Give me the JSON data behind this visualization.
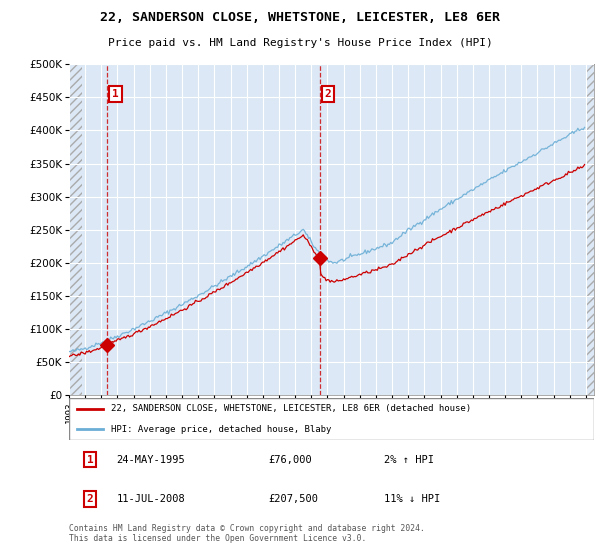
{
  "title_line1": "22, SANDERSON CLOSE, WHETSTONE, LEICESTER, LE8 6ER",
  "title_line2": "Price paid vs. HM Land Registry's House Price Index (HPI)",
  "legend_line1": "22, SANDERSON CLOSE, WHETSTONE, LEICESTER, LE8 6ER (detached house)",
  "legend_line2": "HPI: Average price, detached house, Blaby",
  "footnote": "Contains HM Land Registry data © Crown copyright and database right 2024.\nThis data is licensed under the Open Government Licence v3.0.",
  "annotation1_date": "24-MAY-1995",
  "annotation1_price": "£76,000",
  "annotation1_hpi": "2% ↑ HPI",
  "annotation2_date": "11-JUL-2008",
  "annotation2_price": "£207,500",
  "annotation2_hpi": "11% ↓ HPI",
  "sale1_x": 1995.38,
  "sale1_y": 76000,
  "sale2_x": 2008.53,
  "sale2_y": 207500,
  "hpi_color": "#6baed6",
  "sale_color": "#cc0000",
  "ylim_max": 500000,
  "xlim_min": 1993.0,
  "xlim_max": 2025.5,
  "yticks": [
    0,
    50000,
    100000,
    150000,
    200000,
    250000,
    300000,
    350000,
    400000,
    450000,
    500000
  ],
  "xticks": [
    1993,
    1994,
    1995,
    1996,
    1997,
    1998,
    1999,
    2000,
    2001,
    2002,
    2003,
    2004,
    2005,
    2006,
    2007,
    2008,
    2009,
    2010,
    2011,
    2012,
    2013,
    2014,
    2015,
    2016,
    2017,
    2018,
    2019,
    2020,
    2021,
    2022,
    2023,
    2024,
    2025
  ],
  "plot_bg_color": "#dce8f5",
  "hatch_end_x": 1993.8
}
